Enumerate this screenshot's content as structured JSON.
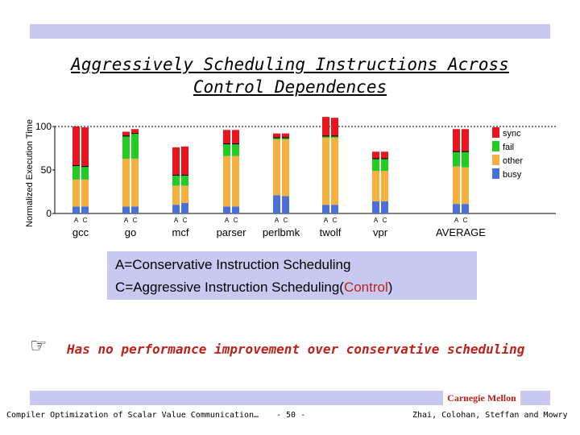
{
  "title": "Aggressively Scheduling Instructions Across Control Dependences",
  "chart_data": {
    "type": "bar",
    "stacked": true,
    "ylabel": "Normalized Execution Time",
    "yticks": [
      "0",
      "50",
      "100"
    ],
    "ylim": [
      0,
      100
    ],
    "categories": [
      "gcc",
      "go",
      "mcf",
      "parser",
      "perlbmk",
      "twolf",
      "vpr",
      "AVERAGE"
    ],
    "bar_labels": [
      "A",
      "C"
    ],
    "legend": [
      "sync",
      "fail",
      "other",
      "busy"
    ],
    "colors": {
      "busy": "#4a6fd8",
      "other": "#f5b040",
      "fail": "#22cc22",
      "sync": "#e8141e"
    },
    "bars": [
      {
        "category": "gcc",
        "A": {
          "busy": 8,
          "other": 31,
          "fail": 16,
          "sync": 45
        },
        "C": {
          "busy": 8,
          "other": 31,
          "fail": 15,
          "sync": 45
        }
      },
      {
        "category": "go",
        "A": {
          "busy": 8,
          "other": 55,
          "fail": 26,
          "sync": 5
        },
        "C": {
          "busy": 8,
          "other": 55,
          "fail": 29,
          "sync": 5
        }
      },
      {
        "category": "mcf",
        "A": {
          "busy": 10,
          "other": 22,
          "fail": 12,
          "sync": 32
        },
        "C": {
          "busy": 12,
          "other": 20,
          "fail": 12,
          "sync": 33
        }
      },
      {
        "category": "parser",
        "A": {
          "busy": 8,
          "other": 58,
          "fail": 14,
          "sync": 16
        },
        "C": {
          "busy": 8,
          "other": 58,
          "fail": 14,
          "sync": 16
        }
      },
      {
        "category": "perlbmk",
        "A": {
          "busy": 21,
          "other": 64,
          "fail": 2,
          "sync": 5
        },
        "C": {
          "busy": 20,
          "other": 65,
          "fail": 2,
          "sync": 5
        }
      },
      {
        "category": "twolf",
        "A": {
          "busy": 10,
          "other": 77,
          "fail": 2,
          "sync": 22
        },
        "C": {
          "busy": 10,
          "other": 77,
          "fail": 2,
          "sync": 21
        }
      },
      {
        "category": "vpr",
        "A": {
          "busy": 14,
          "other": 35,
          "fail": 14,
          "sync": 8
        },
        "C": {
          "busy": 14,
          "other": 35,
          "fail": 14,
          "sync": 8
        }
      },
      {
        "category": "AVERAGE",
        "A": {
          "busy": 11,
          "other": 43,
          "fail": 17,
          "sync": 26
        },
        "C": {
          "busy": 11,
          "other": 42,
          "fail": 18,
          "sync": 26
        }
      }
    ]
  },
  "legend_box": {
    "line1": "A=Conservative Instruction Scheduling",
    "line2_prefix": "C=Aggressive Instruction Scheduling(",
    "line2_highlight": "Control",
    "line2_suffix": ")"
  },
  "note": "Has no performance improvement over conservative scheduling",
  "note_icon": "pointing-hand-icon",
  "footer": {
    "institution": "Carnegie Mellon",
    "left": "Compiler Optimization of Scalar Value Communication…",
    "center": "- 50 -",
    "right": "Zhai, Colohan, Steffan and Mowry"
  }
}
